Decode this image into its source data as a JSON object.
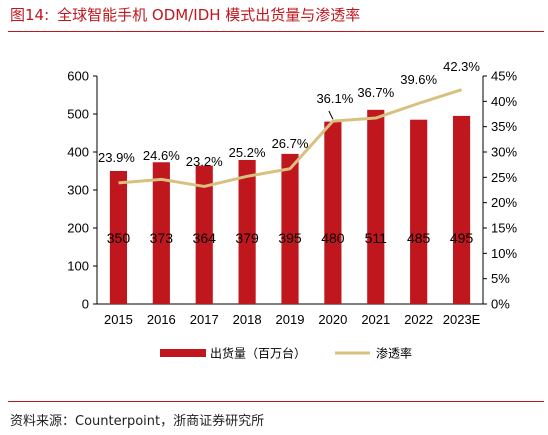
{
  "figure": {
    "number": "图14:",
    "title": "全球智能手机 ODM/IDH 模式出货量与渗透率"
  },
  "source": "资料来源：Counterpoint，浙商证券研究所",
  "colors": {
    "bar": "#c0161d",
    "line": "#d8c07f",
    "title": "#c0161d"
  },
  "chart_data": {
    "type": "bar",
    "categories": [
      "2015",
      "2016",
      "2017",
      "2018",
      "2019",
      "2020",
      "2021",
      "2022",
      "2023E"
    ],
    "series": [
      {
        "name": "出货量（百万台）",
        "type": "bar",
        "axis": "left",
        "values": [
          350,
          373,
          364,
          379,
          395,
          480,
          511,
          485,
          495
        ]
      },
      {
        "name": "渗透率",
        "type": "line",
        "axis": "right",
        "values": [
          23.9,
          24.6,
          23.2,
          25.2,
          26.7,
          36.1,
          36.7,
          39.6,
          42.3
        ],
        "labels": [
          "23.9%",
          "24.6%",
          "23.2%",
          "25.2%",
          "26.7%",
          "36.1%",
          "36.7%",
          "39.6%",
          "42.3%"
        ]
      }
    ],
    "y_left": {
      "ylim": [
        0,
        600
      ],
      "ticks": [
        "0",
        "100",
        "200",
        "300",
        "400",
        "500",
        "600"
      ]
    },
    "y_right": {
      "ylim": [
        0,
        45
      ],
      "ticks": [
        "0%",
        "5%",
        "10%",
        "15%",
        "20%",
        "25%",
        "30%",
        "35%",
        "40%",
        "45%"
      ]
    },
    "grid": false,
    "legend_position": "bottom"
  }
}
